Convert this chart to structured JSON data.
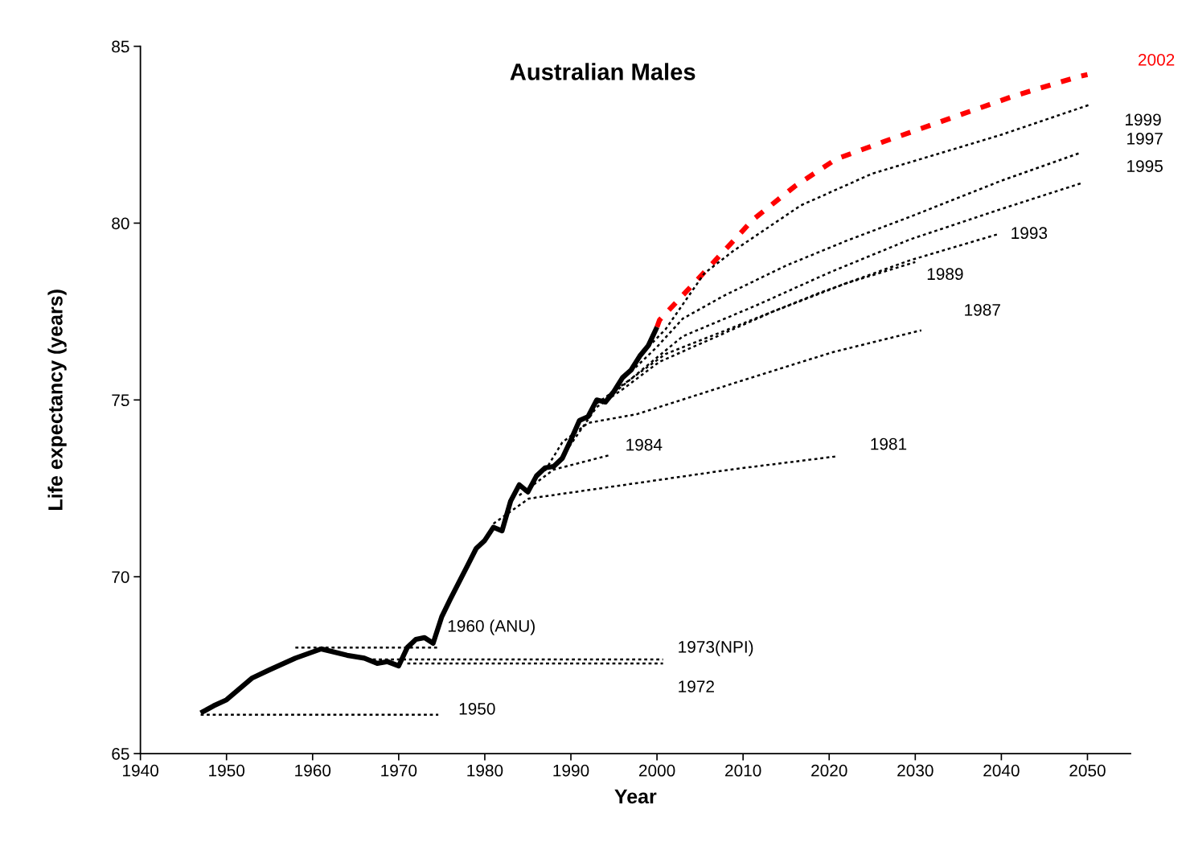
{
  "chart_data": {
    "type": "line",
    "title": "Australian Males",
    "xlabel": "Year",
    "ylabel": "Life expectancy (years)",
    "xlim": [
      1940,
      2055
    ],
    "xticks": [
      1940,
      1950,
      1960,
      1970,
      1980,
      1990,
      2000,
      2010,
      2020,
      2030,
      2040,
      2050
    ],
    "ylim": [
      65,
      85
    ],
    "yticks": [
      65,
      70,
      75,
      80,
      85
    ],
    "grid": false,
    "legend": false,
    "series": [
      {
        "color": "#000000",
        "line_style": "solid",
        "x": [
          1947,
          1948.5,
          1950,
          1953,
          1955,
          1958,
          1961,
          1964,
          1966,
          1967.5,
          1968.7,
          1970,
          1971,
          1972,
          1973,
          1974,
          1975,
          1976,
          1978,
          1979,
          1980,
          1981,
          1982,
          1983,
          1984,
          1985,
          1986,
          1987,
          1988,
          1989,
          1990,
          1991,
          1992,
          1993,
          1994,
          1995,
          1996,
          1997,
          1998,
          1999,
          2000
        ],
        "values": [
          66.15,
          66.35,
          66.52,
          67.14,
          67.37,
          67.7,
          67.96,
          67.78,
          67.7,
          67.55,
          67.6,
          67.48,
          68.0,
          68.23,
          68.28,
          68.12,
          68.87,
          69.37,
          70.32,
          70.8,
          71.03,
          71.4,
          71.3,
          72.14,
          72.6,
          72.4,
          72.85,
          73.08,
          73.12,
          73.35,
          73.87,
          74.42,
          74.53,
          75.0,
          74.94,
          75.24,
          75.63,
          75.85,
          76.24,
          76.54,
          77.06
        ]
      },
      {
        "name": "2002",
        "color": "#ff0000",
        "line_style": "dashed",
        "x": [
          2000,
          2000.3,
          2004,
          2008.5,
          2011.1,
          2016,
          2020.8,
          2026.4,
          2033.9,
          2041.4,
          2048.9,
          2050
        ],
        "values": [
          77.06,
          77.26,
          78.22,
          79.4,
          80.09,
          81.04,
          81.81,
          82.31,
          82.95,
          83.59,
          84.14,
          84.2
        ]
      },
      {
        "name": "1999",
        "color": "#000000",
        "line_style": "dotted",
        "x": [
          1999,
          2001,
          2005.5,
          2008.9,
          2016.7,
          2025,
          2033.2,
          2040,
          2050.4
        ],
        "values": [
          76.5,
          77.0,
          78.58,
          79.22,
          80.5,
          81.4,
          82.0,
          82.5,
          83.36
        ]
      },
      {
        "name": "1997",
        "color": "#000000",
        "line_style": "dotted",
        "x": [
          1997,
          2000,
          2003,
          2007.8,
          2015,
          2022,
          2029.4,
          2040,
          2049.3
        ],
        "values": [
          75.8,
          76.5,
          77.3,
          77.95,
          78.8,
          79.5,
          80.18,
          81.2,
          82.0
        ]
      },
      {
        "name": "1995",
        "color": "#000000",
        "line_style": "dotted",
        "x": [
          1995,
          1999,
          2003,
          2011.5,
          2020,
          2029.4,
          2040,
          2049.3
        ],
        "values": [
          75.2,
          76.0,
          76.8,
          77.67,
          78.6,
          79.54,
          80.4,
          81.13
        ]
      },
      {
        "name": "1993",
        "color": "#000000",
        "line_style": "dotted",
        "x": [
          1993,
          1997,
          2001,
          2007.8,
          2019,
          2029.4,
          2039.5
        ],
        "values": [
          74.9,
          75.6,
          76.3,
          76.95,
          78.04,
          78.95,
          79.68
        ]
      },
      {
        "name": "1989",
        "color": "#000000",
        "line_style": "dotted",
        "x": [
          1989,
          1993,
          1996,
          2000.3,
          2013.4,
          2022,
          2030
        ],
        "values": [
          73.4,
          74.8,
          75.3,
          76.08,
          77.49,
          78.3,
          78.9
        ]
      },
      {
        "name": "1987",
        "color": "#000000",
        "line_style": "dotted",
        "x": [
          1987,
          1989,
          1992,
          1997.7,
          2010.3,
          2020.4,
          2030.7
        ],
        "values": [
          73.0,
          73.8,
          74.35,
          74.6,
          75.58,
          76.35,
          76.97
        ]
      },
      {
        "name": "1984",
        "color": "#000000",
        "line_style": "dotted",
        "x": [
          1984,
          1988,
          1994.5
        ],
        "values": [
          72.3,
          73.03,
          73.44
        ]
      },
      {
        "name": "1981",
        "color": "#000000",
        "line_style": "dotted",
        "x": [
          1981,
          1985.1,
          1997.7,
          2008.5,
          2020.7
        ],
        "values": [
          71.5,
          72.21,
          72.65,
          73.03,
          73.4
        ]
      },
      {
        "name": "1973(NPI)",
        "color": "#000000",
        "line_style": "dotted",
        "x": [
          1967,
          2000.7
        ],
        "values": [
          67.66,
          67.66
        ]
      },
      {
        "name": "1972",
        "color": "#000000",
        "line_style": "dotted",
        "x": [
          1971,
          2000.7
        ],
        "values": [
          67.55,
          67.55
        ]
      },
      {
        "name": "1960 (ANU)",
        "color": "#000000",
        "line_style": "dotted",
        "x": [
          1958,
          1974.6
        ],
        "values": [
          68.0,
          68.0
        ]
      },
      {
        "name": "1950",
        "color": "#000000",
        "line_style": "dotted",
        "x": [
          1947,
          1974.6
        ],
        "values": [
          66.1,
          66.1
        ]
      }
    ]
  }
}
